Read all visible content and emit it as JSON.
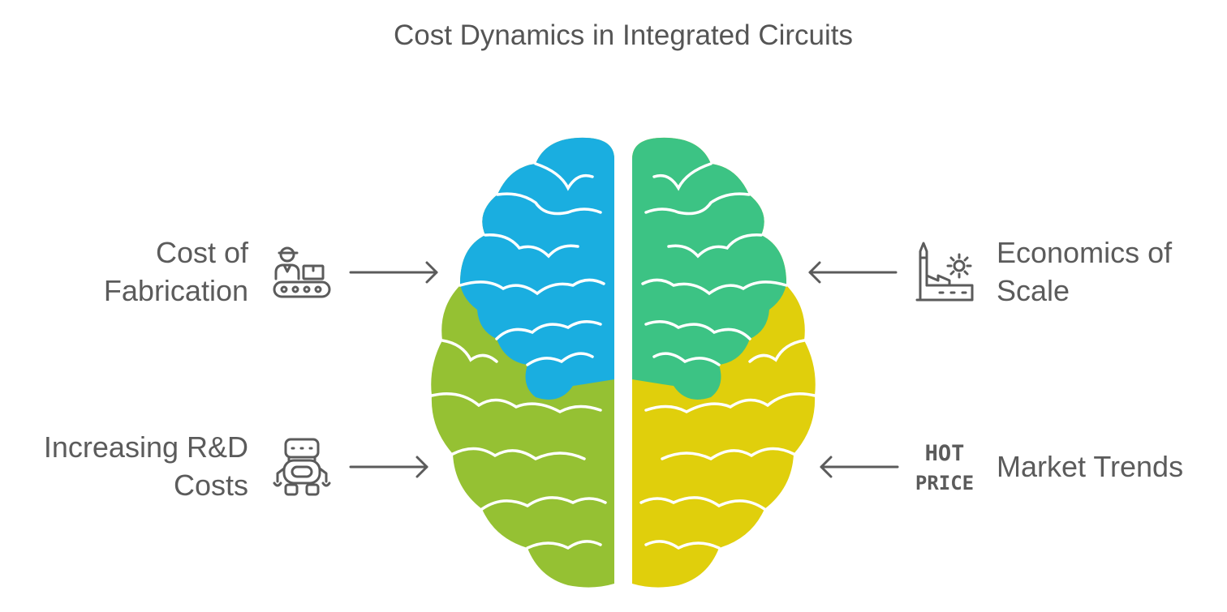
{
  "title": "Cost Dynamics in Integrated Circuits",
  "factors": [
    {
      "key": "fabrication",
      "label_lines": [
        "Cost of",
        "Fabrication"
      ],
      "icon": "worker-conveyor-icon",
      "color": "#1aaee0"
    },
    {
      "key": "scale",
      "label_lines": [
        "Economics of",
        "Scale"
      ],
      "icon": "factory-gear-icon",
      "color": "#3cc384"
    },
    {
      "key": "rnd",
      "label_lines": [
        "Increasing R&D",
        "Costs"
      ],
      "icon": "robot-icon",
      "color": "#95c133"
    },
    {
      "key": "market",
      "label_lines": [
        "Market Trends"
      ],
      "icon": "hot-price-icon",
      "color": "#e0cf0c"
    }
  ],
  "hot_price_icon_text": {
    "line1": "HOT",
    "line2": "PRICE"
  }
}
